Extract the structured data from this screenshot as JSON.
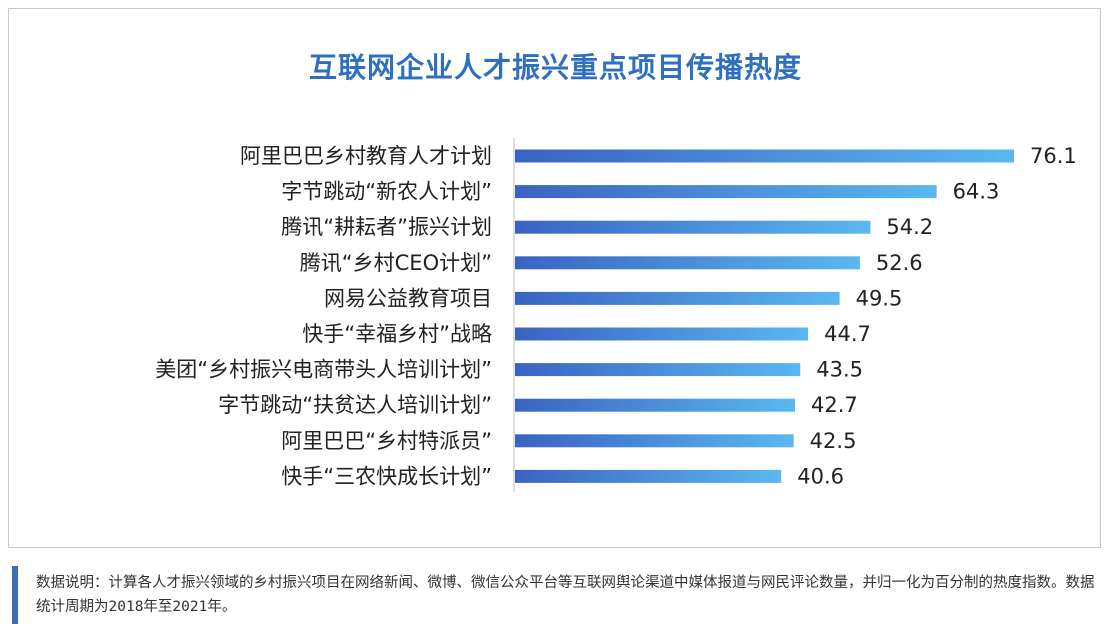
{
  "chart_data": {
    "type": "bar",
    "orientation": "horizontal",
    "title": "互联网企业人才振兴重点项目传播热度",
    "categories": [
      "阿里巴巴乡村教育人才计划",
      "字节跳动“新农人计划”",
      "腾讯“耕耘者”振兴计划",
      "腾讯“乡村CEO计划”",
      "网易公益教育项目",
      "快手“幸福乡村”战略",
      "美团“乡村振兴电商带头人培训计划”",
      "字节跳动“扶贫达人培训计划”",
      "阿里巴巴“乡村特派员”",
      "快手“三农快成长计划”"
    ],
    "values": [
      76.1,
      64.3,
      54.2,
      52.6,
      49.5,
      44.7,
      43.5,
      42.7,
      42.5,
      40.6
    ],
    "value_labels": [
      "76.1",
      "64.3",
      "54.2",
      "52.6",
      "49.5",
      "44.7",
      "43.5",
      "42.7",
      "42.5",
      "40.6"
    ],
    "xlim": [
      0,
      76.1
    ],
    "grid": false,
    "legend": "none",
    "colors": {
      "bar_start": "#3a63c2",
      "bar_end": "#5ab8f0",
      "title": "#2f6fc0",
      "axis": "#bfbfbf",
      "text": "#222222"
    }
  },
  "note": {
    "text": "数据说明：计算各人才振兴领域的乡村振兴项目在网络新闻、微博、微信公众平台等互联网舆论渠道中媒体报道与网民评论数量，并归一化为百分制的热度指数。数据统计周期为2018年至2021年。"
  }
}
